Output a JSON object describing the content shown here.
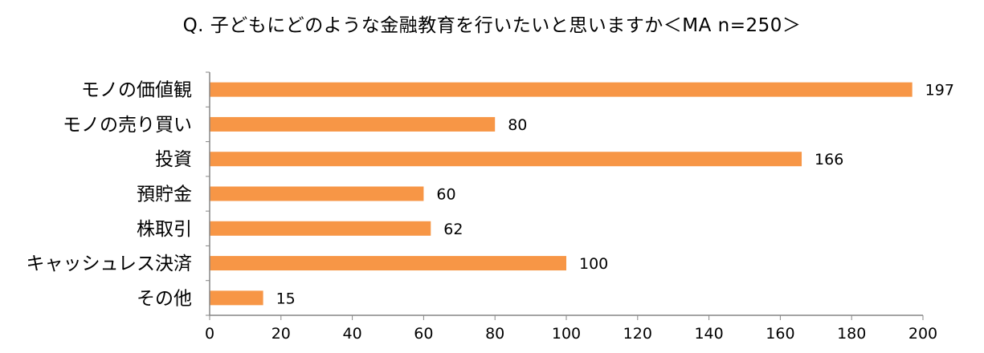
{
  "title": "Q. 子どもにどのような金融教育を行いたいと思いますか＜MA n=250＞",
  "colors": {
    "bar": "#F79646",
    "axis": "#868686"
  },
  "chart_data": {
    "type": "bar",
    "orientation": "horizontal",
    "title": "Q. 子どもにどのような金融教育を行いたいと思いますか＜MA n=250＞",
    "categories": [
      "モノの価値観",
      "モノの売り買い",
      "投資",
      "預貯金",
      "株取引",
      "キャッシュレス決済",
      "その他"
    ],
    "values": [
      197,
      80,
      166,
      60,
      62,
      100,
      15
    ],
    "xlim": [
      0,
      200
    ],
    "xticks": [
      0,
      20,
      40,
      60,
      80,
      100,
      120,
      140,
      160,
      180,
      200
    ],
    "xlabel": "",
    "ylabel": "",
    "grid": false,
    "legend": "none",
    "data_labels": true
  }
}
